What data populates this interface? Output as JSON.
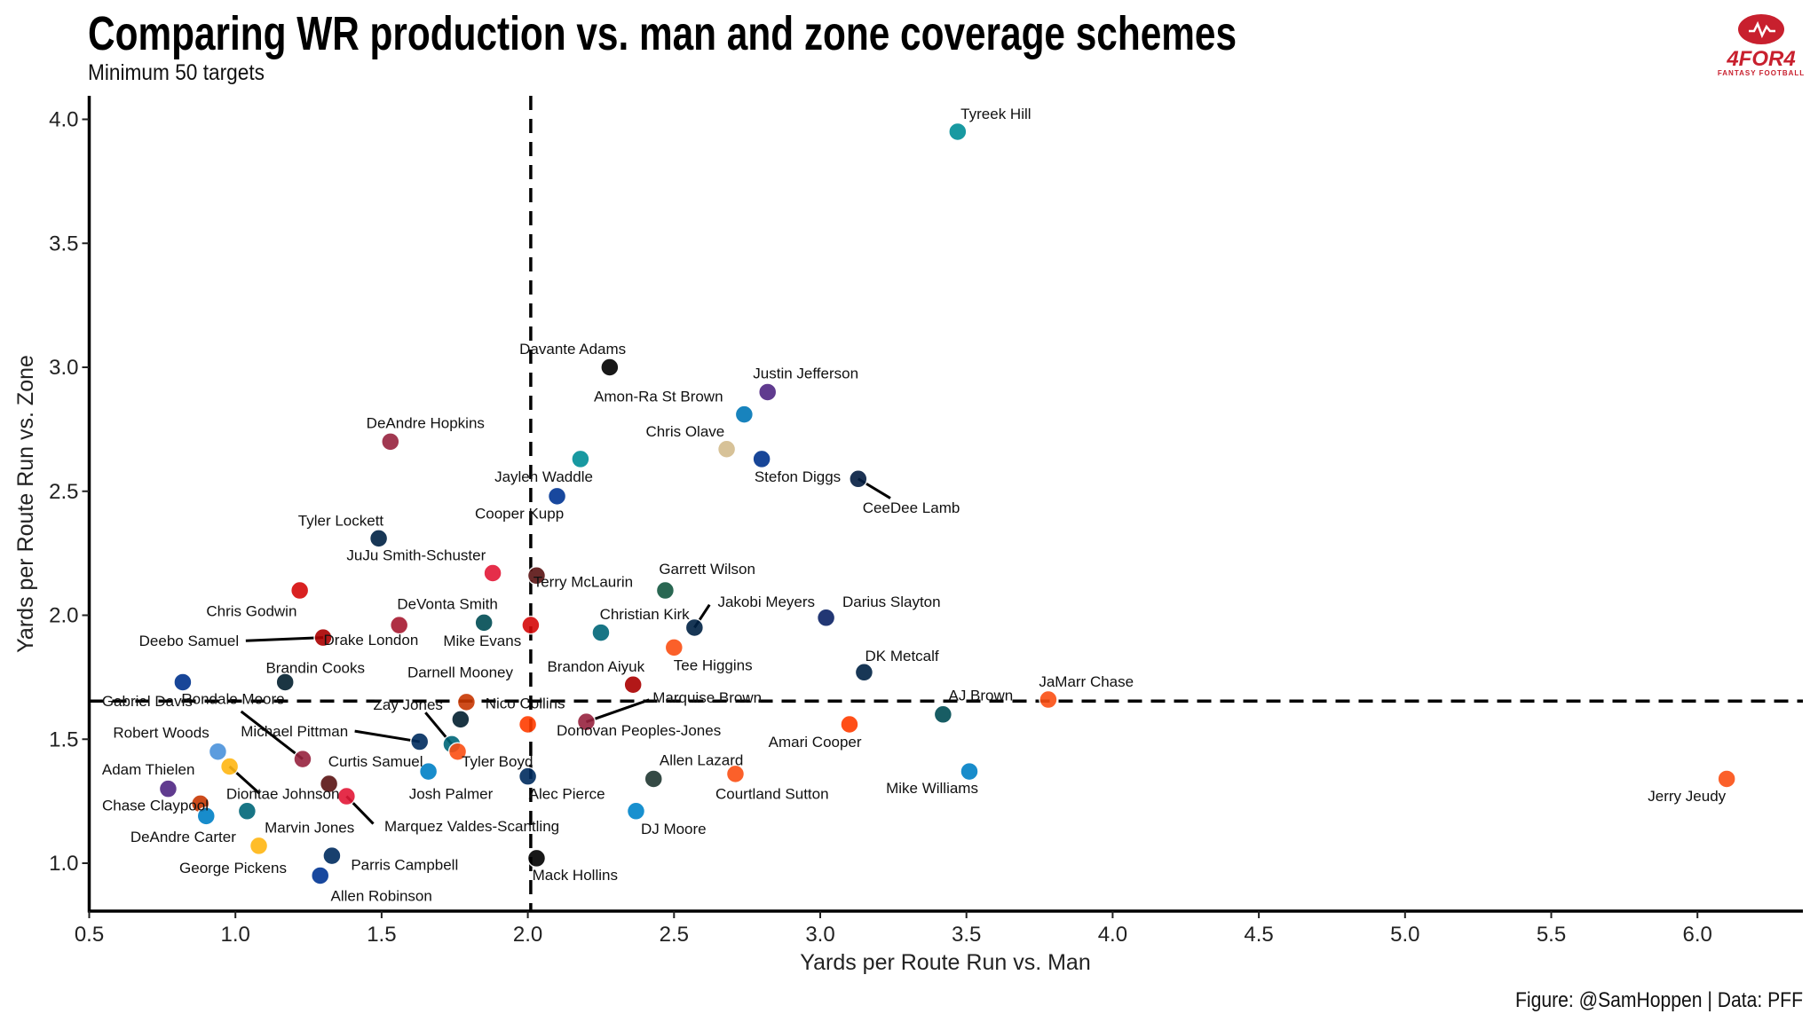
{
  "chart_data": {
    "type": "scatter",
    "title": "Comparing WR production vs. man and zone coverage schemes",
    "subtitle": "Minimum 50 targets",
    "xlabel": "Yards per Route Run vs. Man",
    "ylabel": "Yards per Route Run vs. Zone",
    "caption": "Figure: @SamHoppen | Data: PFF",
    "xlim": [
      0.5,
      6.36
    ],
    "ylim": [
      0.81,
      4.09
    ],
    "xticks": [
      "0.5",
      "1.0",
      "1.5",
      "2.0",
      "2.5",
      "3.0",
      "3.5",
      "4.0",
      "4.5",
      "5.0",
      "5.5",
      "6.0"
    ],
    "yticks": [
      "1.0",
      "1.5",
      "2.0",
      "2.5",
      "3.0",
      "3.5",
      "4.0"
    ],
    "reference_lines": {
      "x": 2.01,
      "y": 1.654
    },
    "grid": false,
    "logo": {
      "text": "4FOR4",
      "subtext": "FANTASY FOOTBALL",
      "color": "#c8202e"
    },
    "points": [
      {
        "name": "Tyreek Hill",
        "x": 3.47,
        "y": 3.95,
        "color": "#008E97"
      },
      {
        "name": "Davante Adams",
        "x": 2.28,
        "y": 3.0,
        "color": "#000000"
      },
      {
        "name": "Justin Jefferson",
        "x": 2.82,
        "y": 2.9,
        "color": "#4F2683"
      },
      {
        "name": "Amon-Ra St Brown",
        "x": 2.74,
        "y": 2.81,
        "color": "#0076B6"
      },
      {
        "name": "Chris Olave",
        "x": 2.68,
        "y": 2.67,
        "color": "#D3BC8D"
      },
      {
        "name": "Stefon Diggs",
        "x": 2.8,
        "y": 2.63,
        "color": "#00338D"
      },
      {
        "name": "CeeDee Lamb",
        "x": 3.13,
        "y": 2.55,
        "color": "#041E42"
      },
      {
        "name": "DeAndre Hopkins",
        "x": 1.53,
        "y": 2.7,
        "color": "#97233F"
      },
      {
        "name": "Jaylen Waddle",
        "x": 2.18,
        "y": 2.63,
        "color": "#008E97"
      },
      {
        "name": "Cooper Kupp",
        "x": 2.1,
        "y": 2.48,
        "color": "#003594"
      },
      {
        "name": "Tyler Lockett",
        "x": 1.49,
        "y": 2.31,
        "color": "#002244"
      },
      {
        "name": "JuJu Smith-Schuster",
        "x": 1.88,
        "y": 2.17,
        "color": "#E31837"
      },
      {
        "name": "Terry McLaurin",
        "x": 2.03,
        "y": 2.16,
        "color": "#5A1414"
      },
      {
        "name": "Garrett Wilson",
        "x": 2.47,
        "y": 2.1,
        "color": "#125740"
      },
      {
        "name": "Chris Godwin",
        "x": 1.22,
        "y": 2.1,
        "color": "#D50A0A"
      },
      {
        "name": "DeVonta Smith",
        "x": 1.85,
        "y": 1.97,
        "color": "#004C54"
      },
      {
        "name": "Jakobi Meyers",
        "x": 2.57,
        "y": 1.95,
        "color": "#002244"
      },
      {
        "name": "Darius Slayton",
        "x": 3.02,
        "y": 1.99,
        "color": "#0B2265"
      },
      {
        "name": "Christian Kirk",
        "x": 2.25,
        "y": 1.93,
        "color": "#006778"
      },
      {
        "name": "Deebo Samuel",
        "x": 1.3,
        "y": 1.91,
        "color": "#AA0000"
      },
      {
        "name": "Drake London",
        "x": 1.56,
        "y": 1.96,
        "color": "#A71930"
      },
      {
        "name": "Mike Evans",
        "x": 2.01,
        "y": 1.96,
        "color": "#D50A0A"
      },
      {
        "name": "Tee Higgins",
        "x": 2.5,
        "y": 1.87,
        "color": "#FB4F14"
      },
      {
        "name": "DK Metcalf",
        "x": 3.15,
        "y": 1.77,
        "color": "#002244"
      },
      {
        "name": "Brandon Aiyuk",
        "x": 2.36,
        "y": 1.72,
        "color": "#AA0000"
      },
      {
        "name": "Brandin Cooks",
        "x": 1.17,
        "y": 1.73,
        "color": "#03202F"
      },
      {
        "name": "Darnell Mooney",
        "x": 1.79,
        "y": 1.65,
        "color": "#C83803"
      },
      {
        "name": "Gabriel Davis",
        "x": 0.82,
        "y": 1.73,
        "color": "#00338D"
      },
      {
        "name": "Rondale Moore",
        "x": 1.23,
        "y": 1.42,
        "color": "#97233F"
      },
      {
        "name": "Zay Jones",
        "x": 1.74,
        "y": 1.48,
        "color": "#006778"
      },
      {
        "name": "Nico Collins",
        "x": 1.77,
        "y": 1.58,
        "color": "#03202F"
      },
      {
        "name": "Marquise Brown",
        "x": 2.2,
        "y": 1.57,
        "color": "#97233F"
      },
      {
        "name": "Donovan Peoples-Jones",
        "x": 2.0,
        "y": 1.56,
        "color": "#FF3C00"
      },
      {
        "name": "AJ Brown",
        "x": 3.42,
        "y": 1.6,
        "color": "#004C54"
      },
      {
        "name": "JaMarr Chase",
        "x": 3.78,
        "y": 1.66,
        "color": "#FB4F14"
      },
      {
        "name": "Amari Cooper",
        "x": 3.1,
        "y": 1.56,
        "color": "#FF3C00"
      },
      {
        "name": "Michael Pittman",
        "x": 1.63,
        "y": 1.49,
        "color": "#002C5F"
      },
      {
        "name": "Robert Woods",
        "x": 0.94,
        "y": 1.45,
        "color": "#4B92DB"
      },
      {
        "name": "Adam Thielen",
        "x": 0.77,
        "y": 1.3,
        "color": "#4F2683"
      },
      {
        "name": "Diontae Johnson",
        "x": 0.98,
        "y": 1.39,
        "color": "#FFB612"
      },
      {
        "name": "Curtis Samuel",
        "x": 1.32,
        "y": 1.32,
        "color": "#5A1414"
      },
      {
        "name": "Josh Palmer",
        "x": 1.66,
        "y": 1.37,
        "color": "#0080C6"
      },
      {
        "name": "Tyler Boyd",
        "x": 1.76,
        "y": 1.45,
        "color": "#FB4F14"
      },
      {
        "name": "Alec Pierce",
        "x": 2.0,
        "y": 1.35,
        "color": "#002C5F"
      },
      {
        "name": "Allen Lazard",
        "x": 2.43,
        "y": 1.34,
        "color": "#203731"
      },
      {
        "name": "Courtland Sutton",
        "x": 2.71,
        "y": 1.36,
        "color": "#FB4F14"
      },
      {
        "name": "Mike Williams",
        "x": 3.51,
        "y": 1.37,
        "color": "#0080C6"
      },
      {
        "name": "Jerry Jeudy",
        "x": 6.1,
        "y": 1.34,
        "color": "#FB4F14"
      },
      {
        "name": "Chase Claypool",
        "x": 0.88,
        "y": 1.24,
        "color": "#C83803"
      },
      {
        "name": "Marquez Valdes-Scantling",
        "x": 1.38,
        "y": 1.27,
        "color": "#E31837"
      },
      {
        "name": "DJ Moore",
        "x": 2.37,
        "y": 1.21,
        "color": "#0085CA"
      },
      {
        "name": "Marvin Jones",
        "x": 1.04,
        "y": 1.21,
        "color": "#006778"
      },
      {
        "name": "DeAndre Carter",
        "x": 0.9,
        "y": 1.19,
        "color": "#0080C6"
      },
      {
        "name": "George Pickens",
        "x": 1.08,
        "y": 1.07,
        "color": "#FFB612"
      },
      {
        "name": "Parris Campbell",
        "x": 1.33,
        "y": 1.03,
        "color": "#002C5F"
      },
      {
        "name": "Mack Hollins",
        "x": 2.03,
        "y": 1.02,
        "color": "#000000"
      },
      {
        "name": "Allen Robinson",
        "x": 1.29,
        "y": 0.95,
        "color": "#003594"
      }
    ]
  }
}
